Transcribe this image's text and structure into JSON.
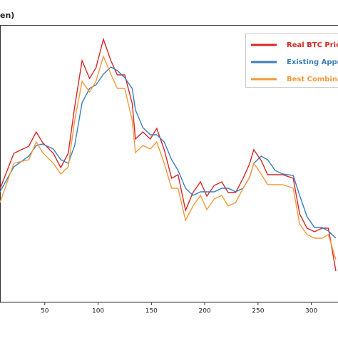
{
  "chart_data": {
    "type": "line",
    "title": "en)",
    "x": [
      8,
      21,
      35,
      42,
      48,
      58,
      65,
      72,
      78,
      85,
      92,
      98,
      105,
      112,
      118,
      125,
      132,
      135,
      142,
      149,
      155,
      162,
      169,
      175,
      182,
      189,
      196,
      202,
      209,
      216,
      222,
      229,
      236,
      242,
      246,
      253,
      259,
      266,
      273,
      283,
      289,
      296,
      303,
      310,
      316,
      323
    ],
    "series": [
      {
        "name": "Real BTC Pric",
        "color": "#d62728",
        "values": [
          159,
          209,
          219,
          239,
          224,
          209,
          189,
          209,
          274,
          339,
          314,
          329,
          369,
          339,
          319,
          319,
          279,
          229,
          239,
          229,
          244,
          214,
          174,
          179,
          129,
          154,
          169,
          149,
          164,
          169,
          154,
          154,
          174,
          194,
          214,
          199,
          179,
          179,
          179,
          174,
          124,
          104,
          99,
          104,
          104,
          44
        ]
      },
      {
        "name": "Existing Appr",
        "color": "#3a7dbd",
        "values": [
          155,
          190,
          205,
          220,
          222,
          215,
          200,
          195,
          220,
          280,
          300,
          305,
          320,
          330,
          325,
          315,
          300,
          270,
          245,
          235,
          235,
          225,
          200,
          185,
          160,
          150,
          155,
          155,
          155,
          160,
          160,
          155,
          160,
          175,
          195,
          205,
          200,
          185,
          180,
          178,
          150,
          120,
          105,
          105,
          100,
          90
        ]
      },
      {
        "name": "Best Combina",
        "color": "#f39a3a",
        "values": [
          140,
          195,
          200,
          225,
          210,
          195,
          180,
          190,
          255,
          310,
          295,
          310,
          345,
          320,
          300,
          300,
          255,
          210,
          220,
          215,
          225,
          195,
          160,
          160,
          115,
          135,
          150,
          130,
          145,
          150,
          135,
          140,
          160,
          175,
          195,
          180,
          165,
          165,
          165,
          160,
          110,
          95,
          90,
          90,
          95,
          60
        ]
      }
    ],
    "xlim": [
      8,
      325
    ],
    "xticks": [
      50,
      100,
      150,
      200,
      250,
      300
    ],
    "ylim": [
      0,
      389
    ],
    "legend": "upper right"
  }
}
